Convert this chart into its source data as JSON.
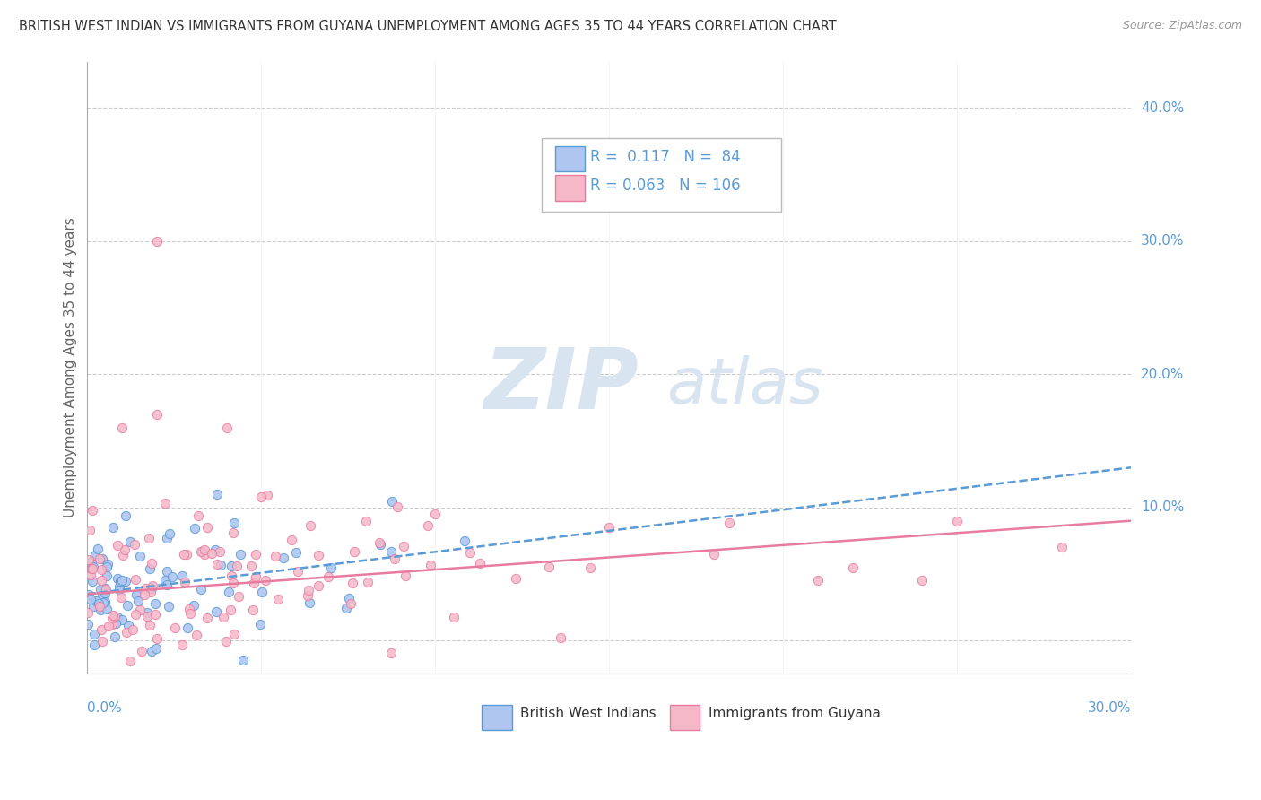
{
  "title": "BRITISH WEST INDIAN VS IMMIGRANTS FROM GUYANA UNEMPLOYMENT AMONG AGES 35 TO 44 YEARS CORRELATION CHART",
  "source": "Source: ZipAtlas.com",
  "ylabel": "Unemployment Among Ages 35 to 44 years",
  "x_range": [
    0.0,
    0.3
  ],
  "y_range": [
    -0.025,
    0.435
  ],
  "y_ticks": [
    0.0,
    0.1,
    0.2,
    0.3,
    0.4
  ],
  "y_tick_labels": [
    "",
    "10.0%",
    "20.0%",
    "30.0%",
    "40.0%"
  ],
  "x_tick_labels_pos": [
    0.0,
    0.3
  ],
  "x_tick_labels": [
    "0.0%",
    "30.0%"
  ],
  "color_blue_fill": "#aec6f0",
  "color_blue_edge": "#5b9bd5",
  "color_pink_fill": "#f5b8c8",
  "color_pink_edge": "#e87ca0",
  "color_axis_label": "#5b9bd5",
  "grid_color": "#cccccc",
  "bg_color": "#ffffff",
  "watermark_color": "#d8e4f0",
  "series1_name": "British West Indians",
  "series2_name": "Immigrants from Guyana",
  "legend_r1_text": "R =  0.117   N =  84",
  "legend_r2_text": "R = 0.063   N = 106",
  "blue_trend_x": [
    0.0,
    0.3
  ],
  "blue_trend_y": [
    0.035,
    0.13
  ],
  "pink_trend_x": [
    0.0,
    0.3
  ],
  "pink_trend_y": [
    0.035,
    0.09
  ]
}
